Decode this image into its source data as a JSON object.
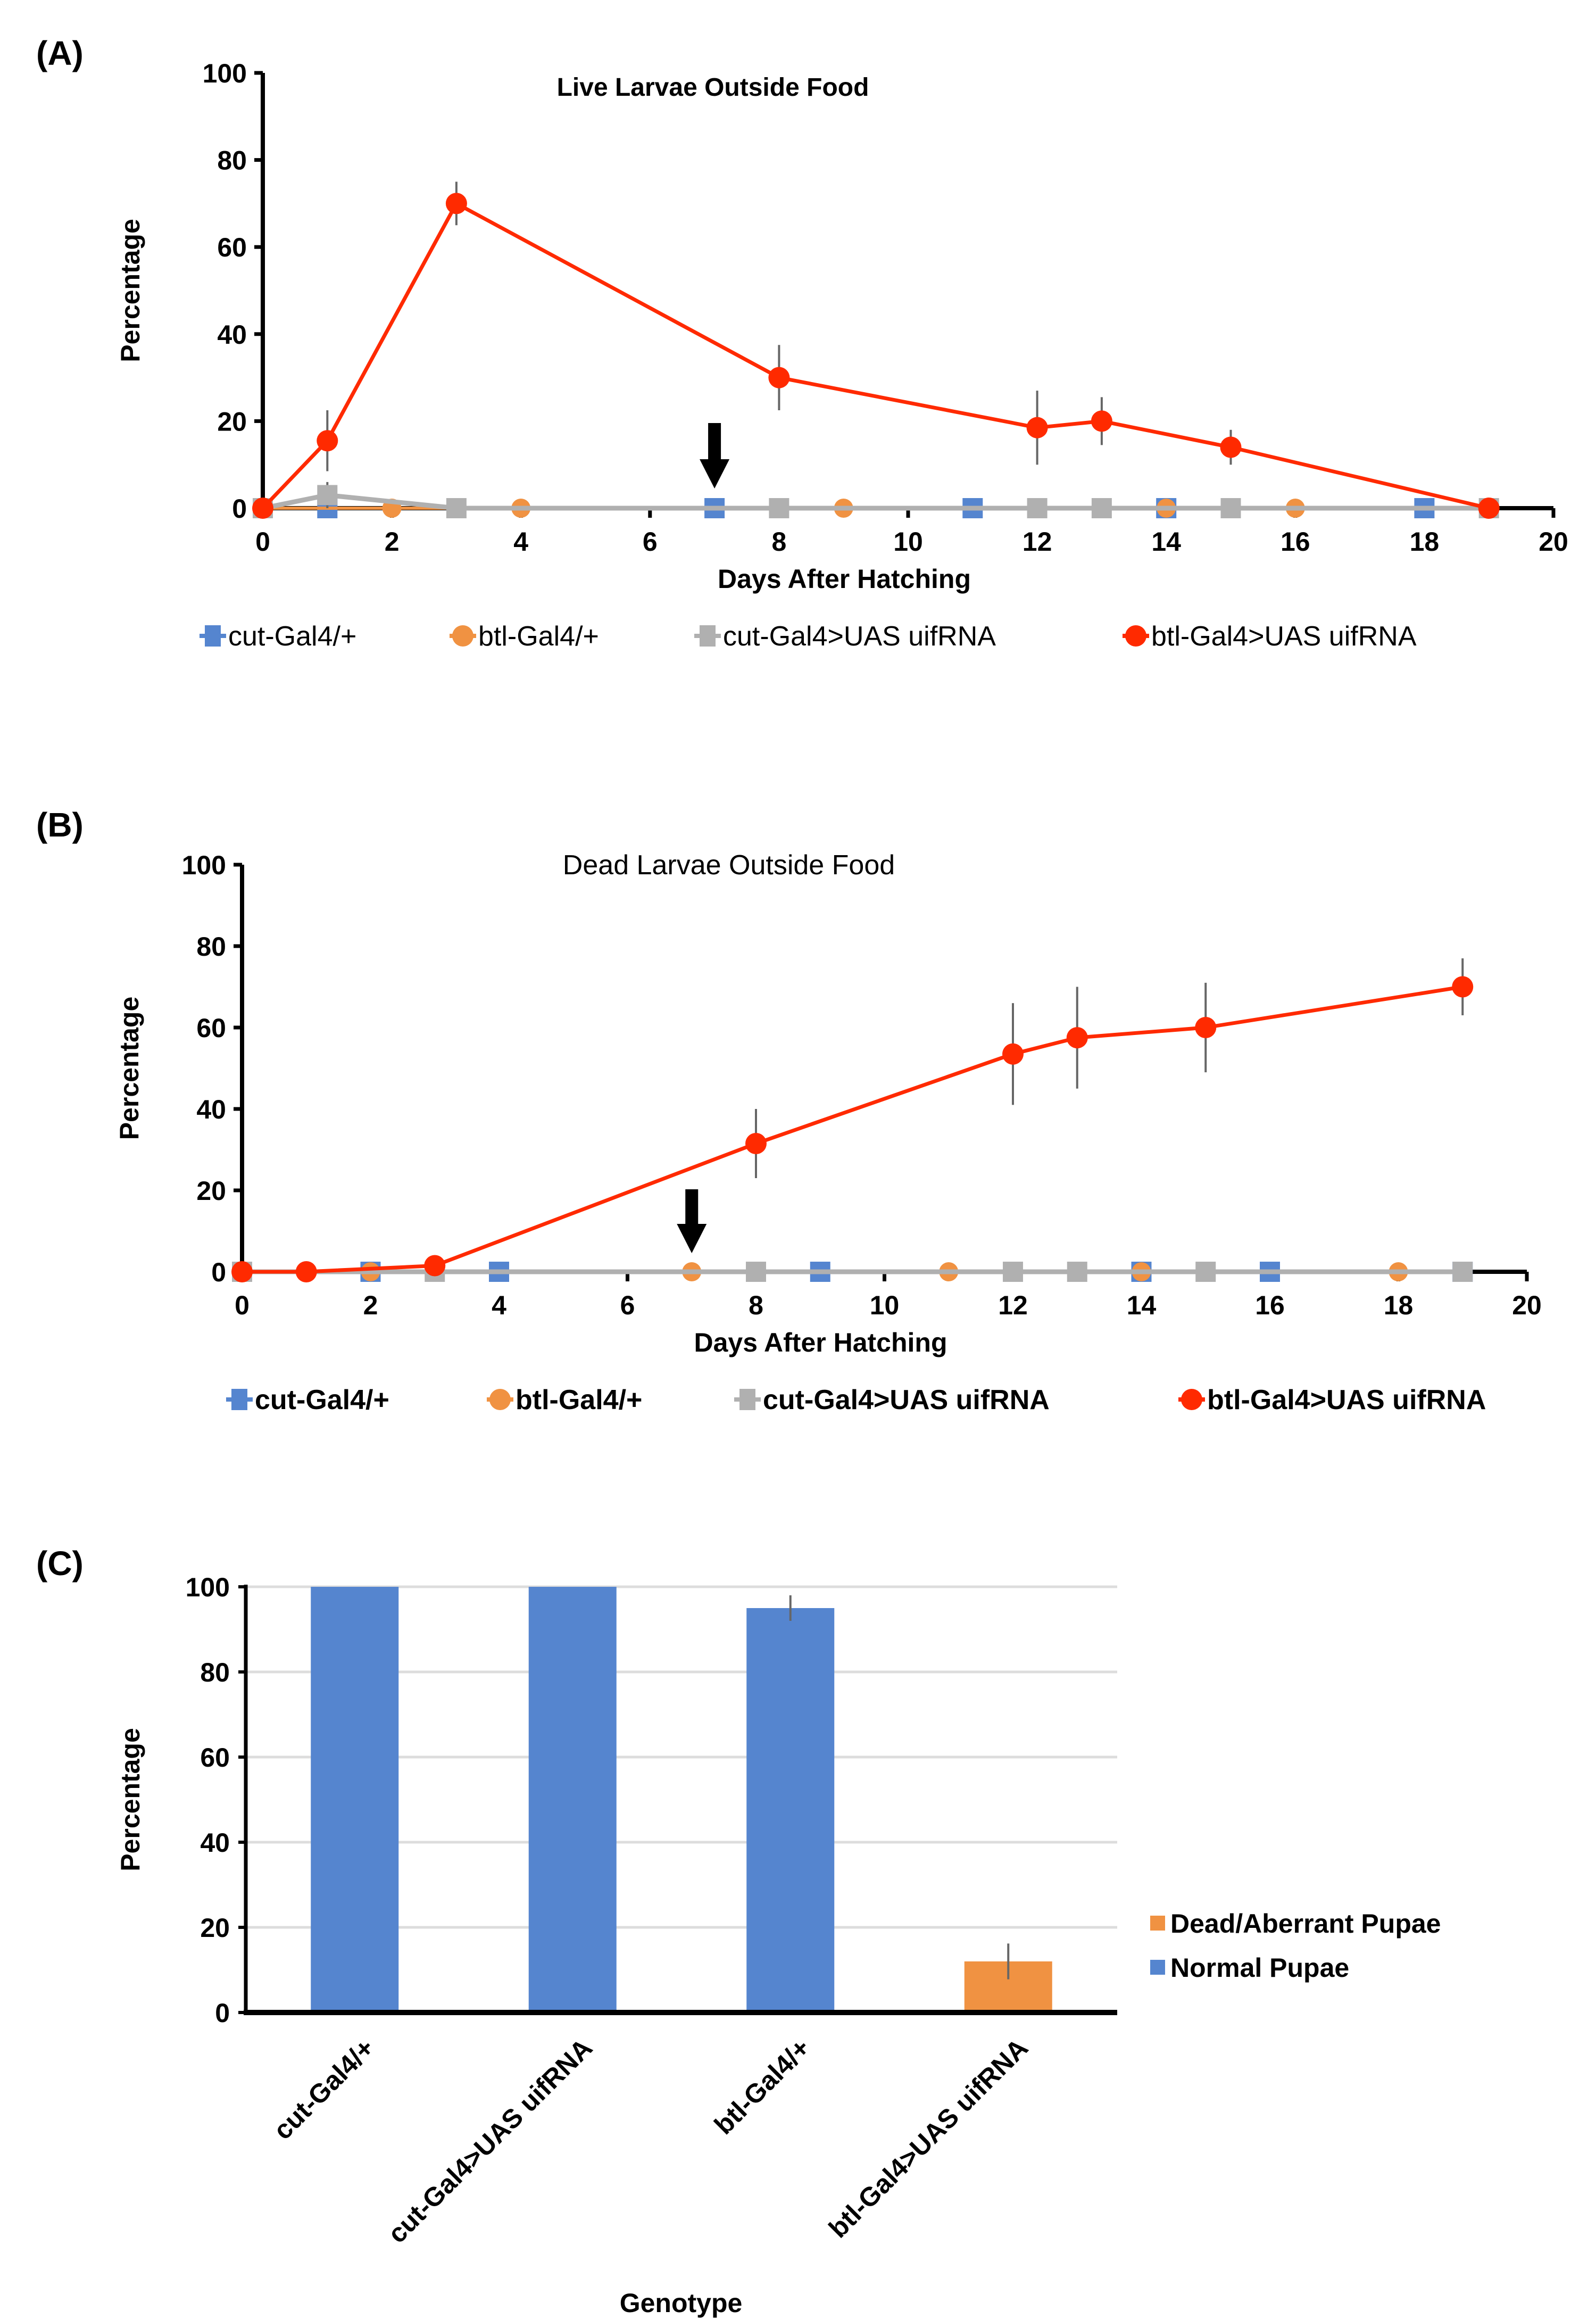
{
  "chart_data": [
    {
      "panel": "(A)",
      "type": "line",
      "title": "Live Larvae Outside Food",
      "xlabel": "Days After Hatching",
      "ylabel": "Percentage",
      "xlim": [
        0,
        20
      ],
      "ylim": [
        0,
        100
      ],
      "xticks": [
        "0",
        "2",
        "4",
        "6",
        "8",
        "10",
        "12",
        "14",
        "16",
        "18",
        "20"
      ],
      "yticks": [
        "0",
        "20",
        "40",
        "60",
        "80",
        "100"
      ],
      "legend_position": "bottom",
      "annotations": [
        {
          "type": "arrow-down",
          "x": 7,
          "label": ""
        }
      ],
      "series": [
        {
          "name": "cut-Gal4/+",
          "color": "#5585CF",
          "marker": "square",
          "points": [
            [
              0,
              0
            ],
            [
              1,
              0
            ],
            [
              7,
              0
            ],
            [
              11,
              0
            ],
            [
              14,
              0
            ],
            [
              18,
              0
            ]
          ]
        },
        {
          "name": "btl-Gal4/+",
          "color": "#F09242",
          "marker": "circle",
          "points": [
            [
              0,
              0
            ],
            [
              2,
              0
            ],
            [
              4,
              0
            ],
            [
              9,
              0
            ],
            [
              14,
              0
            ],
            [
              16,
              0
            ]
          ]
        },
        {
          "name": "cut-Gal4>UAS uifRNA",
          "color": "#B0B0B0",
          "marker": "square",
          "points": [
            [
              0,
              0
            ],
            [
              1,
              3
            ],
            [
              3,
              0
            ],
            [
              8,
              0
            ],
            [
              12,
              0
            ],
            [
              13,
              0
            ],
            [
              15,
              0
            ],
            [
              19,
              0
            ]
          ],
          "errors": [
            0,
            3,
            0,
            0,
            0,
            0,
            0,
            0
          ]
        },
        {
          "name": "btl-Gal4>UAS uifRNA",
          "color": "#FF2A00",
          "marker": "circle",
          "points": [
            [
              0,
              0
            ],
            [
              1,
              15.5
            ],
            [
              3,
              70
            ],
            [
              8,
              30
            ],
            [
              12,
              18.5
            ],
            [
              13,
              20
            ],
            [
              15,
              14
            ],
            [
              19,
              0
            ]
          ],
          "errors": [
            0,
            7,
            5,
            7.5,
            8.5,
            5.5,
            4,
            0
          ]
        }
      ]
    },
    {
      "panel": "(B)",
      "type": "line",
      "title": "Dead Larvae Outside Food",
      "xlabel": "Days After Hatching",
      "ylabel": "Percentage",
      "xlim": [
        0,
        20
      ],
      "ylim": [
        0,
        100
      ],
      "xticks": [
        "0",
        "2",
        "4",
        "6",
        "8",
        "10",
        "12",
        "14",
        "16",
        "18",
        "20"
      ],
      "yticks": [
        "0",
        "20",
        "40",
        "60",
        "80",
        "100"
      ],
      "legend_position": "bottom",
      "annotations": [
        {
          "type": "arrow-down",
          "x": 7,
          "label": ""
        }
      ],
      "series": [
        {
          "name": "cut-Gal4/+",
          "color": "#5585CF",
          "marker": "square",
          "points": [
            [
              0,
              0
            ],
            [
              2,
              0
            ],
            [
              4,
              0
            ],
            [
              9,
              0
            ],
            [
              14,
              0
            ],
            [
              16,
              0
            ],
            [
              19,
              0
            ]
          ]
        },
        {
          "name": "btl-Gal4/+",
          "color": "#F09242",
          "marker": "circle",
          "points": [
            [
              0,
              0
            ],
            [
              2,
              0
            ],
            [
              7,
              0
            ],
            [
              11,
              0
            ],
            [
              14,
              0
            ],
            [
              18,
              0
            ]
          ]
        },
        {
          "name": "cut-Gal4>UAS uifRNA",
          "color": "#B0B0B0",
          "marker": "square",
          "points": [
            [
              0,
              0
            ],
            [
              3,
              0
            ],
            [
              8,
              0
            ],
            [
              12,
              0
            ],
            [
              13,
              0
            ],
            [
              15,
              0
            ],
            [
              19,
              0
            ]
          ]
        },
        {
          "name": "btl-Gal4>UAS uifRNA",
          "color": "#FF2A00",
          "marker": "circle",
          "points": [
            [
              0,
              0
            ],
            [
              1,
              0
            ],
            [
              3,
              1.5
            ],
            [
              8,
              31.5
            ],
            [
              12,
              53.5
            ],
            [
              13,
              57.5
            ],
            [
              15,
              60
            ],
            [
              19,
              70
            ]
          ],
          "errors": [
            0,
            0,
            0,
            8.5,
            12.5,
            12.5,
            11,
            7
          ]
        }
      ]
    },
    {
      "panel": "(C)",
      "type": "bar",
      "title": "",
      "xlabel": "Genotype",
      "ylabel": "Percentage",
      "ylim": [
        0,
        100
      ],
      "yticks": [
        "0",
        "20",
        "40",
        "60",
        "80",
        "100"
      ],
      "grid": true,
      "legend_position": "right",
      "categories": [
        "cut-Gal4/+",
        "cut-Gal4>UAS uifRNA",
        "btl-Gal4/+",
        "btl-Gal4>UAS uifRNA"
      ],
      "series": [
        {
          "name": "Dead/Aberrant Pupae",
          "color": "#F09242",
          "values": [
            0,
            0,
            0,
            12
          ],
          "errors": [
            0,
            0,
            0,
            4.2
          ]
        },
        {
          "name": "Normal Pupae",
          "color": "#5585CF",
          "values": [
            100,
            100,
            95,
            0
          ],
          "errors": [
            0,
            0,
            3,
            0
          ]
        }
      ]
    }
  ],
  "labels": {
    "A": "(A)",
    "B": "(B)",
    "C": "(C)"
  }
}
